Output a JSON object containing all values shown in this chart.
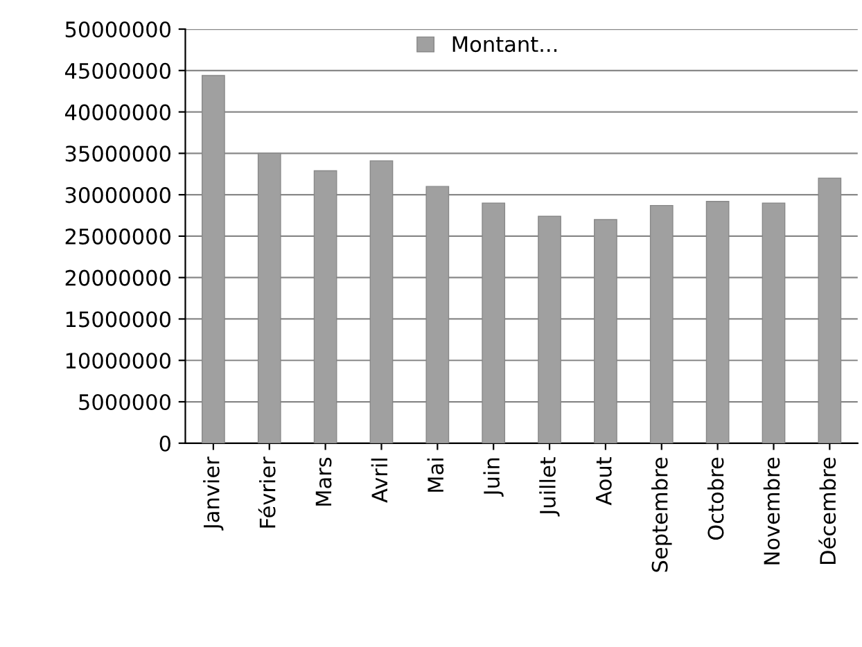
{
  "chart_data": {
    "type": "bar",
    "categories": [
      "Janvier",
      "Février",
      "Mars",
      "Avril",
      "Mai",
      "Juin",
      "Juillet",
      "Aout",
      "Septembre",
      "Octobre",
      "Novembre",
      "Décembre"
    ],
    "series": [
      {
        "name": "Montant...",
        "color": "#a0a0a0",
        "values": [
          44400000,
          35000000,
          32900000,
          34100000,
          31000000,
          29000000,
          27400000,
          27000000,
          28700000,
          29200000,
          29000000,
          32000000
        ]
      }
    ],
    "ylim": [
      0,
      50000000
    ],
    "yticks": [
      0,
      5000000,
      10000000,
      15000000,
      20000000,
      25000000,
      30000000,
      35000000,
      40000000,
      45000000,
      50000000
    ],
    "grid": "y",
    "legend": "top"
  }
}
